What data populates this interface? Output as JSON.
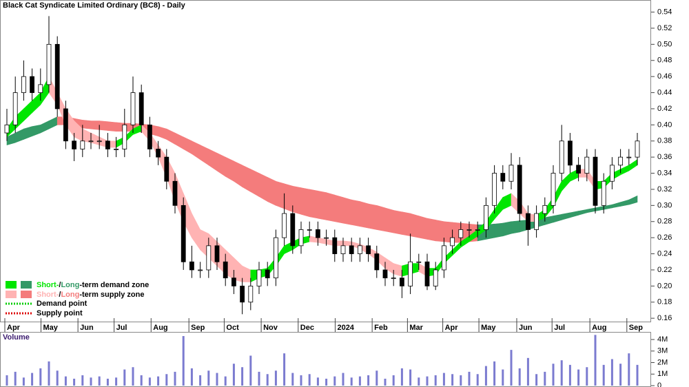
{
  "chart_data": {
    "type": "candlestick",
    "title": "Black Cat Syndicate Limited Ordinary (BC8) - Daily",
    "open": [
      0.39,
      0.4,
      0.44,
      0.46,
      0.44,
      0.45,
      0.5,
      0.42,
      0.38,
      0.37,
      0.38,
      0.38,
      0.38,
      0.37,
      0.37,
      0.4,
      0.44,
      0.4,
      0.37,
      0.36,
      0.33,
      0.3,
      0.23,
      0.22,
      0.22,
      0.25,
      0.23,
      0.21,
      0.2,
      0.18,
      0.2,
      0.22,
      0.21,
      0.26,
      0.29,
      0.25,
      0.27,
      0.27,
      0.26,
      0.26,
      0.24,
      0.25,
      0.24,
      0.25,
      0.24,
      0.22,
      0.21,
      0.21,
      0.2,
      0.23,
      0.23,
      0.2,
      0.22,
      0.25,
      0.26,
      0.27,
      0.27,
      0.27,
      0.3,
      0.34,
      0.33,
      0.35,
      0.29,
      0.27,
      0.29,
      0.3,
      0.34,
      0.38,
      0.35,
      0.34,
      0.36,
      0.3,
      0.33,
      0.35,
      0.36,
      0.36
    ],
    "high": [
      0.42,
      0.46,
      0.48,
      0.47,
      0.47,
      0.535,
      0.51,
      0.43,
      0.39,
      0.4,
      0.39,
      0.4,
      0.39,
      0.385,
      0.42,
      0.46,
      0.45,
      0.41,
      0.38,
      0.37,
      0.34,
      0.31,
      0.25,
      0.23,
      0.26,
      0.26,
      0.24,
      0.22,
      0.21,
      0.21,
      0.23,
      0.23,
      0.27,
      0.315,
      0.3,
      0.28,
      0.28,
      0.28,
      0.27,
      0.27,
      0.26,
      0.26,
      0.26,
      0.26,
      0.25,
      0.23,
      0.22,
      0.22,
      0.265,
      0.24,
      0.24,
      0.23,
      0.26,
      0.27,
      0.28,
      0.28,
      0.28,
      0.31,
      0.35,
      0.35,
      0.365,
      0.36,
      0.3,
      0.3,
      0.31,
      0.35,
      0.4,
      0.39,
      0.36,
      0.37,
      0.37,
      0.34,
      0.36,
      0.37,
      0.37,
      0.39
    ],
    "low": [
      0.38,
      0.39,
      0.43,
      0.43,
      0.43,
      0.44,
      0.41,
      0.37,
      0.355,
      0.36,
      0.37,
      0.37,
      0.36,
      0.36,
      0.36,
      0.39,
      0.39,
      0.36,
      0.35,
      0.32,
      0.29,
      0.22,
      0.21,
      0.21,
      0.21,
      0.22,
      0.2,
      0.19,
      0.165,
      0.17,
      0.19,
      0.2,
      0.2,
      0.25,
      0.24,
      0.24,
      0.26,
      0.25,
      0.25,
      0.23,
      0.23,
      0.23,
      0.23,
      0.23,
      0.21,
      0.2,
      0.2,
      0.185,
      0.19,
      0.22,
      0.195,
      0.195,
      0.21,
      0.24,
      0.25,
      0.26,
      0.26,
      0.26,
      0.29,
      0.32,
      0.32,
      0.28,
      0.25,
      0.26,
      0.28,
      0.29,
      0.33,
      0.34,
      0.33,
      0.33,
      0.29,
      0.29,
      0.32,
      0.34,
      0.35,
      0.35
    ],
    "close": [
      0.4,
      0.44,
      0.46,
      0.44,
      0.45,
      0.5,
      0.42,
      0.38,
      0.37,
      0.38,
      0.38,
      0.38,
      0.37,
      0.37,
      0.4,
      0.44,
      0.4,
      0.37,
      0.36,
      0.33,
      0.3,
      0.23,
      0.22,
      0.22,
      0.25,
      0.23,
      0.21,
      0.2,
      0.18,
      0.2,
      0.22,
      0.21,
      0.26,
      0.29,
      0.25,
      0.27,
      0.27,
      0.26,
      0.26,
      0.24,
      0.25,
      0.24,
      0.25,
      0.24,
      0.22,
      0.21,
      0.21,
      0.2,
      0.23,
      0.23,
      0.2,
      0.22,
      0.25,
      0.26,
      0.27,
      0.27,
      0.27,
      0.3,
      0.34,
      0.33,
      0.35,
      0.29,
      0.27,
      0.29,
      0.3,
      0.34,
      0.38,
      0.35,
      0.34,
      0.36,
      0.3,
      0.33,
      0.35,
      0.36,
      0.36,
      0.38
    ],
    "short_term": {
      "rising_color": "#00e600",
      "falling_color": "#ffb3b3",
      "upper": [
        0.395,
        0.41,
        0.42,
        0.43,
        0.44,
        0.46,
        0.44,
        0.42,
        0.405,
        0.395,
        0.39,
        0.385,
        0.38,
        0.38,
        0.385,
        0.395,
        0.4,
        0.39,
        0.375,
        0.36,
        0.34,
        0.315,
        0.29,
        0.27,
        0.265,
        0.255,
        0.245,
        0.235,
        0.225,
        0.22,
        0.22,
        0.222,
        0.235,
        0.25,
        0.255,
        0.26,
        0.262,
        0.26,
        0.258,
        0.256,
        0.256,
        0.255,
        0.252,
        0.248,
        0.242,
        0.235,
        0.228,
        0.225,
        0.228,
        0.228,
        0.222,
        0.222,
        0.235,
        0.245,
        0.255,
        0.262,
        0.27,
        0.28,
        0.295,
        0.31,
        0.315,
        0.305,
        0.29,
        0.288,
        0.295,
        0.31,
        0.33,
        0.34,
        0.345,
        0.345,
        0.33,
        0.33,
        0.34,
        0.345,
        0.35,
        0.357
      ],
      "lower": [
        0.385,
        0.395,
        0.405,
        0.415,
        0.425,
        0.44,
        0.425,
        0.4,
        0.385,
        0.38,
        0.378,
        0.375,
        0.372,
        0.372,
        0.378,
        0.388,
        0.392,
        0.38,
        0.36,
        0.335,
        0.305,
        0.28,
        0.26,
        0.245,
        0.235,
        0.225,
        0.215,
        0.208,
        0.205,
        0.205,
        0.21,
        0.213,
        0.225,
        0.24,
        0.245,
        0.252,
        0.255,
        0.254,
        0.252,
        0.25,
        0.25,
        0.25,
        0.246,
        0.24,
        0.232,
        0.222,
        0.215,
        0.212,
        0.215,
        0.218,
        0.212,
        0.214,
        0.228,
        0.238,
        0.248,
        0.255,
        0.262,
        0.27,
        0.283,
        0.295,
        0.3,
        0.29,
        0.28,
        0.28,
        0.285,
        0.298,
        0.318,
        0.33,
        0.335,
        0.335,
        0.32,
        0.322,
        0.332,
        0.338,
        0.343,
        0.35
      ]
    },
    "long_term": {
      "rising_color": "#339966",
      "falling_color": "#f47c7c",
      "upper": [
        0.385,
        0.39,
        0.395,
        0.398,
        0.4,
        0.405,
        0.41,
        0.41,
        0.408,
        0.406,
        0.405,
        0.405,
        0.404,
        0.403,
        0.402,
        0.402,
        0.401,
        0.4,
        0.398,
        0.395,
        0.39,
        0.385,
        0.38,
        0.375,
        0.37,
        0.365,
        0.36,
        0.355,
        0.35,
        0.345,
        0.34,
        0.335,
        0.33,
        0.327,
        0.324,
        0.322,
        0.32,
        0.318,
        0.316,
        0.313,
        0.31,
        0.307,
        0.305,
        0.302,
        0.3,
        0.297,
        0.294,
        0.292,
        0.29,
        0.287,
        0.284,
        0.282,
        0.28,
        0.279,
        0.278,
        0.277,
        0.276,
        0.276,
        0.277,
        0.278,
        0.28,
        0.281,
        0.282,
        0.283,
        0.285,
        0.287,
        0.289,
        0.291,
        0.293,
        0.295,
        0.297,
        0.299,
        0.301,
        0.304,
        0.307,
        0.312
      ],
      "lower": [
        0.375,
        0.378,
        0.382,
        0.386,
        0.39,
        0.395,
        0.4,
        0.4,
        0.398,
        0.396,
        0.395,
        0.394,
        0.393,
        0.392,
        0.392,
        0.392,
        0.391,
        0.389,
        0.386,
        0.382,
        0.376,
        0.37,
        0.364,
        0.357,
        0.35,
        0.343,
        0.336,
        0.33,
        0.323,
        0.317,
        0.311,
        0.305,
        0.3,
        0.296,
        0.292,
        0.289,
        0.286,
        0.284,
        0.282,
        0.28,
        0.278,
        0.276,
        0.274,
        0.272,
        0.27,
        0.268,
        0.266,
        0.264,
        0.262,
        0.26,
        0.258,
        0.256,
        0.255,
        0.254,
        0.254,
        0.255,
        0.256,
        0.258,
        0.26,
        0.262,
        0.265,
        0.267,
        0.27,
        0.273,
        0.276,
        0.279,
        0.282,
        0.285,
        0.288,
        0.291,
        0.293,
        0.295,
        0.297,
        0.299,
        0.301,
        0.304
      ]
    },
    "ylim": [
      0.155,
      0.555
    ],
    "yticks": [
      0.16,
      0.18,
      {
        "value": 0.2,
        "label": "0.20"
      },
      0.22,
      0.24,
      0.26,
      0.28,
      {
        "value": 0.3,
        "label": "0.30"
      },
      0.32,
      0.34,
      0.36,
      0.38,
      {
        "value": 0.4,
        "label": "0.40"
      },
      0.42,
      0.44,
      0.46,
      0.48,
      {
        "value": 0.5,
        "label": "0.50"
      },
      0.52,
      0.54
    ],
    "xticks": [
      {
        "value": 0,
        "label": "Apr"
      },
      {
        "value": 4.3,
        "label": "May"
      },
      {
        "value": 8.7,
        "label": "Jun"
      },
      {
        "value": 13,
        "label": "Jul"
      },
      {
        "value": 17.4,
        "label": "Aug"
      },
      {
        "value": 21.9,
        "label": "Sep"
      },
      {
        "value": 26.1,
        "label": "Oct"
      },
      {
        "value": 30.5,
        "label": "Nov"
      },
      {
        "value": 34.9,
        "label": "Dec"
      },
      {
        "value": 39.3,
        "label": "2024"
      },
      {
        "value": 43.7,
        "label": "Feb"
      },
      {
        "value": 47.9,
        "label": "Mar"
      },
      {
        "value": 52.1,
        "label": "Apr"
      },
      {
        "value": 56.4,
        "label": "May"
      },
      {
        "value": 60.9,
        "label": "Jun"
      },
      {
        "value": 65.1,
        "label": "Jul"
      },
      {
        "value": 69.6,
        "label": "Aug"
      },
      {
        "value": 74,
        "label": "Sep"
      }
    ],
    "volume": {
      "title": "Volume",
      "color": "#7b7bd0",
      "ylim": [
        0,
        4600000
      ],
      "yticks": [
        {
          "value": 4000000,
          "label": "4M"
        },
        {
          "value": 3000000,
          "label": "3M"
        },
        {
          "value": 2000000,
          "label": "2M"
        },
        {
          "value": 1000000,
          "label": "1M"
        },
        0
      ],
      "values": [
        900000,
        1200000,
        700000,
        1100000,
        1500000,
        2100000,
        1300000,
        800000,
        600000,
        900000,
        700000,
        800000,
        600000,
        700000,
        1400000,
        1600000,
        900000,
        700000,
        800000,
        1000000,
        1200000,
        4300000,
        1500000,
        900000,
        1300000,
        1100000,
        800000,
        1900000,
        1600000,
        2600000,
        1200000,
        1000000,
        1300000,
        2800000,
        1100000,
        900000,
        1000000,
        700000,
        600000,
        800000,
        1100000,
        700000,
        800000,
        900000,
        1300000,
        600000,
        900000,
        1500000,
        1400000,
        700000,
        800000,
        900000,
        1100000,
        1000000,
        900000,
        1200000,
        1000000,
        1700000,
        2100000,
        1400000,
        3100000,
        1500000,
        2400000,
        1000000,
        1200000,
        1900000,
        2200000,
        1800000,
        1400000,
        1600000,
        4400000,
        1800000,
        2300000,
        1900000,
        2800000,
        1800000
      ]
    },
    "legend": {
      "demand_zone": [
        "Short-",
        "/",
        "Long",
        "-term demand zone"
      ],
      "supply_zone": [
        "Short-",
        "/",
        "Long",
        "-term supply zone"
      ],
      "demand_point": {
        "label": "Demand point",
        "color": "#00cc00"
      },
      "supply_point": {
        "label": "Supply point",
        "color": "#dd0000"
      }
    }
  }
}
